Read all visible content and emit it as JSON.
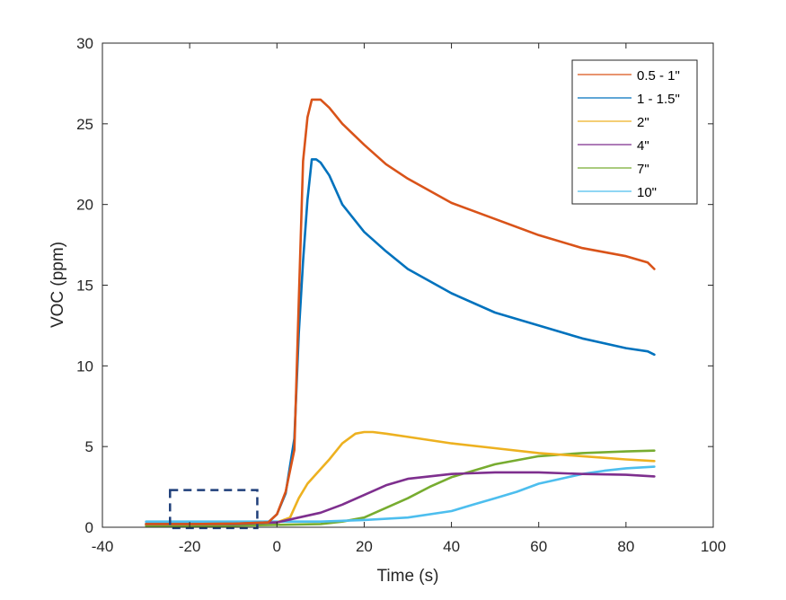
{
  "chart_data": {
    "type": "line",
    "title": "",
    "xlabel": "Time (s)",
    "ylabel": "VOC (ppm)",
    "xlim": [
      -40,
      100
    ],
    "ylim": [
      0,
      30
    ],
    "xticks": [
      -40,
      -20,
      0,
      20,
      40,
      60,
      80,
      100
    ],
    "yticks": [
      0,
      5,
      10,
      15,
      20,
      25,
      30
    ],
    "grid": false,
    "legend": "top-right",
    "series": [
      {
        "name": "0.5 - 1\"",
        "color": "#D95319",
        "x": [
          -30,
          -20,
          -10,
          -2,
          0,
          2,
          4,
          5,
          6,
          7,
          8,
          9,
          10,
          12,
          15,
          20,
          25,
          30,
          40,
          50,
          60,
          70,
          80,
          85,
          86.5
        ],
        "y": [
          0.2,
          0.2,
          0.22,
          0.3,
          0.8,
          2.2,
          4.8,
          14,
          22.7,
          25.4,
          26.5,
          26.5,
          26.5,
          26.0,
          25.0,
          23.7,
          22.5,
          21.6,
          20.1,
          19.1,
          18.1,
          17.3,
          16.8,
          16.4,
          16.0
        ]
      },
      {
        "name": "1 - 1.5\"",
        "color": "#0072BD",
        "x": [
          -30,
          -20,
          -10,
          -2,
          0,
          2,
          4,
          5,
          6,
          7,
          8,
          9,
          10,
          12,
          15,
          20,
          25,
          30,
          40,
          50,
          60,
          70,
          80,
          85,
          86.5
        ],
        "y": [
          0.2,
          0.2,
          0.22,
          0.3,
          0.8,
          2.1,
          5.5,
          12,
          16.5,
          20.3,
          22.8,
          22.8,
          22.6,
          21.8,
          20.0,
          18.3,
          17.1,
          16.0,
          14.5,
          13.3,
          12.5,
          11.7,
          11.1,
          10.9,
          10.7
        ]
      },
      {
        "name": "2\"",
        "color": "#EDB120",
        "x": [
          -30,
          -20,
          -10,
          0,
          3,
          5,
          7,
          10,
          12,
          15,
          18,
          20,
          22,
          25,
          30,
          40,
          50,
          60,
          70,
          80,
          86.5
        ],
        "y": [
          0.2,
          0.2,
          0.22,
          0.3,
          0.6,
          1.8,
          2.7,
          3.6,
          4.2,
          5.2,
          5.8,
          5.9,
          5.9,
          5.8,
          5.6,
          5.2,
          4.9,
          4.6,
          4.4,
          4.2,
          4.1
        ]
      },
      {
        "name": "4\"",
        "color": "#7E2F8E",
        "x": [
          -30,
          -20,
          -10,
          0,
          5,
          10,
          15,
          20,
          25,
          30,
          40,
          50,
          60,
          70,
          80,
          86.5
        ],
        "y": [
          0.2,
          0.2,
          0.2,
          0.3,
          0.6,
          0.9,
          1.4,
          2.0,
          2.6,
          3.0,
          3.3,
          3.4,
          3.4,
          3.3,
          3.25,
          3.15
        ]
      },
      {
        "name": "7\"",
        "color": "#77AC30",
        "x": [
          -30,
          -20,
          -10,
          0,
          10,
          15,
          20,
          25,
          30,
          35,
          40,
          50,
          60,
          70,
          80,
          86.5
        ],
        "y": [
          0.1,
          0.1,
          0.1,
          0.15,
          0.2,
          0.35,
          0.6,
          1.2,
          1.8,
          2.5,
          3.1,
          3.9,
          4.4,
          4.6,
          4.7,
          4.75
        ]
      },
      {
        "name": "10\"",
        "color": "#4DBEEE",
        "x": [
          -30,
          -20,
          -10,
          0,
          10,
          20,
          30,
          40,
          45,
          50,
          55,
          60,
          65,
          70,
          75,
          80,
          86.5
        ],
        "y": [
          0.35,
          0.35,
          0.35,
          0.35,
          0.35,
          0.45,
          0.6,
          1.0,
          1.4,
          1.8,
          2.2,
          2.7,
          3.0,
          3.3,
          3.5,
          3.65,
          3.75
        ]
      }
    ],
    "annotations": [
      {
        "type": "dashed-rectangle",
        "color": "#1F3F7A",
        "x_range": [
          -24.5,
          -4.5
        ],
        "y_range": [
          -0.05,
          2.3
        ]
      }
    ]
  }
}
